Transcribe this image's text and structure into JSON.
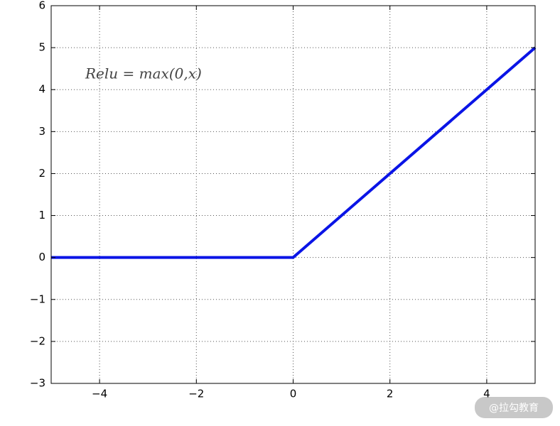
{
  "chart_data": {
    "type": "line",
    "annotation": "Relu = max(0,x)",
    "x": [
      -5,
      0,
      5
    ],
    "values": [
      0,
      0,
      5
    ],
    "color": "#0a14e6",
    "xlim": [
      -5,
      5
    ],
    "ylim": [
      -3,
      6
    ],
    "xticks": [
      {
        "value": -4,
        "label": "−4"
      },
      {
        "value": -2,
        "label": "−2"
      },
      0,
      2,
      4
    ],
    "yticks": [
      {
        "value": -3,
        "label": "−3"
      },
      {
        "value": -2,
        "label": "−2"
      },
      {
        "value": -1,
        "label": "−1"
      },
      0,
      1,
      2,
      3,
      4,
      5,
      6
    ],
    "grid": true
  },
  "watermark": "@拉勾教育"
}
